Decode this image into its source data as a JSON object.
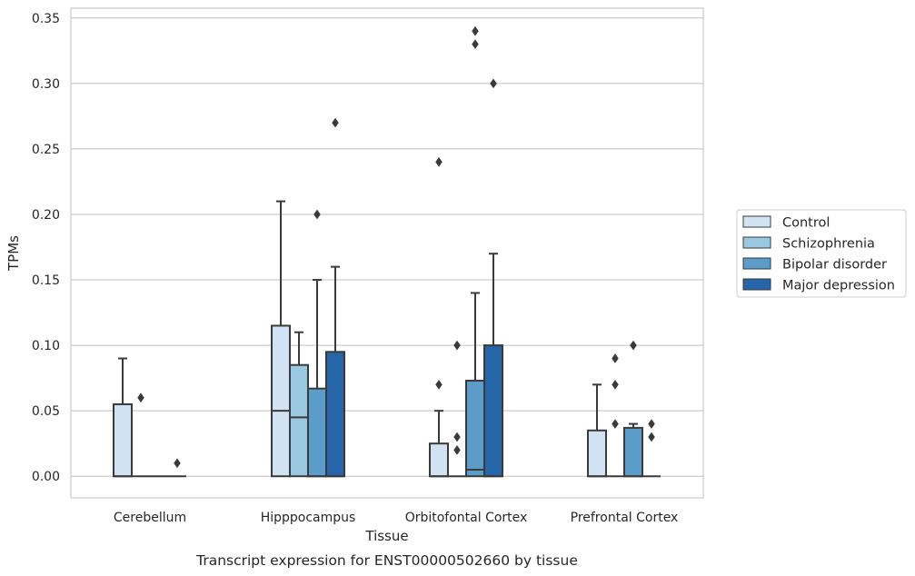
{
  "chart_data": {
    "type": "box",
    "xlabel": "Tissue",
    "ylabel": "TPMs",
    "caption": "Transcript expression for ENST00000502660 by tissue",
    "ylim": [
      -0.0165,
      0.3575
    ],
    "yticks": [
      0.0,
      0.05,
      0.1,
      0.15,
      0.2,
      0.25,
      0.3,
      0.35
    ],
    "ytick_labels": [
      "0.00",
      "0.05",
      "0.10",
      "0.15",
      "0.20",
      "0.25",
      "0.30",
      "0.35"
    ],
    "grid": "horizontal",
    "legend_position": "right",
    "categories": [
      "Cerebellum",
      "Hipppocampus",
      "Orbitofontal Cortex",
      "Prefrontal Cortex"
    ],
    "series": [
      {
        "name": "Control",
        "color": "#d1e2f2",
        "boxes": [
          {
            "q1": 0.0,
            "median": 0.0,
            "q3": 0.055,
            "whisker_low": 0.0,
            "whisker_high": 0.09,
            "outliers": []
          },
          {
            "q1": 0.0,
            "median": 0.05,
            "q3": 0.115,
            "whisker_low": 0.0,
            "whisker_high": 0.21,
            "outliers": []
          },
          {
            "q1": 0.0,
            "median": 0.0,
            "q3": 0.025,
            "whisker_low": 0.0,
            "whisker_high": 0.05,
            "outliers": [
              0.07,
              0.24
            ]
          },
          {
            "q1": 0.0,
            "median": 0.0,
            "q3": 0.035,
            "whisker_low": 0.0,
            "whisker_high": 0.07,
            "outliers": []
          }
        ]
      },
      {
        "name": "Schizophrenia",
        "color": "#9ac8e0",
        "boxes": [
          {
            "q1": 0.0,
            "median": 0.0,
            "q3": 0.0,
            "whisker_low": 0.0,
            "whisker_high": 0.0,
            "outliers": [
              0.06
            ]
          },
          {
            "q1": 0.0,
            "median": 0.045,
            "q3": 0.085,
            "whisker_low": 0.0,
            "whisker_high": 0.11,
            "outliers": []
          },
          {
            "q1": 0.0,
            "median": 0.0,
            "q3": 0.0,
            "whisker_low": 0.0,
            "whisker_high": 0.0,
            "outliers": [
              0.02,
              0.03,
              0.1
            ]
          },
          {
            "q1": 0.0,
            "median": 0.0,
            "q3": 0.0,
            "whisker_low": 0.0,
            "whisker_high": 0.0,
            "outliers": [
              0.04,
              0.07,
              0.09
            ]
          }
        ]
      },
      {
        "name": "Bipolar disorder",
        "color": "#5a9dcb",
        "boxes": [
          {
            "q1": 0.0,
            "median": 0.0,
            "q3": 0.0,
            "whisker_low": 0.0,
            "whisker_high": 0.0,
            "outliers": []
          },
          {
            "q1": 0.0,
            "median": 0.0,
            "q3": 0.067,
            "whisker_low": 0.0,
            "whisker_high": 0.15,
            "outliers": [
              0.2
            ]
          },
          {
            "q1": 0.0,
            "median": 0.005,
            "q3": 0.073,
            "whisker_low": 0.0,
            "whisker_high": 0.14,
            "outliers": [
              0.33,
              0.34
            ]
          },
          {
            "q1": 0.0,
            "median": 0.0,
            "q3": 0.037,
            "whisker_low": 0.0,
            "whisker_high": 0.04,
            "outliers": [
              0.1
            ]
          }
        ]
      },
      {
        "name": "Major depression",
        "color": "#2565a8",
        "boxes": [
          {
            "q1": 0.0,
            "median": 0.0,
            "q3": 0.0,
            "whisker_low": 0.0,
            "whisker_high": 0.0,
            "outliers": [
              0.01
            ]
          },
          {
            "q1": 0.0,
            "median": 0.0,
            "q3": 0.095,
            "whisker_low": 0.0,
            "whisker_high": 0.16,
            "outliers": [
              0.27
            ]
          },
          {
            "q1": 0.0,
            "median": 0.0,
            "q3": 0.1,
            "whisker_low": 0.0,
            "whisker_high": 0.17,
            "outliers": [
              0.3
            ]
          },
          {
            "q1": 0.0,
            "median": 0.0,
            "q3": 0.0,
            "whisker_low": 0.0,
            "whisker_high": 0.0,
            "outliers": [
              0.03,
              0.04
            ]
          }
        ]
      }
    ]
  }
}
